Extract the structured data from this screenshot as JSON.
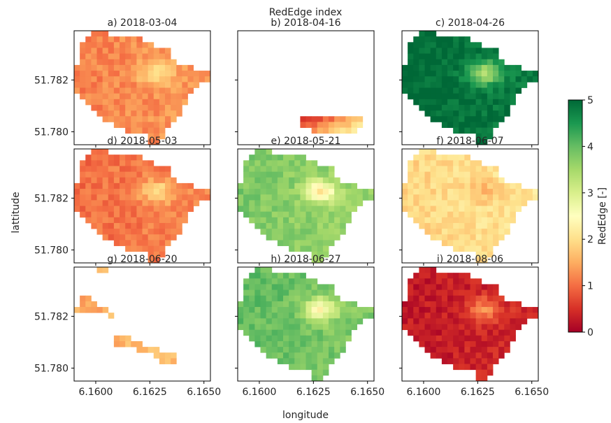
{
  "chart_data": {
    "type": "heatmap",
    "title": "RedEdge index",
    "xlabel": "longitude",
    "ylabel": "lattitude",
    "xlim": [
      6.159,
      6.1653
    ],
    "ylim": [
      51.7795,
      51.7839
    ],
    "x_ticks": [
      6.16,
      6.1625,
      6.165
    ],
    "x_tick_labels": [
      "6.1600",
      "6.1625",
      "6.1650"
    ],
    "y_ticks": [
      51.78,
      51.782
    ],
    "y_tick_labels": [
      "51.780",
      "51.782"
    ],
    "colormap": "RdYlGn",
    "colorbar": {
      "label": "RedEdge [-]",
      "min": 0,
      "max": 5,
      "ticks": [
        0,
        1,
        2,
        3,
        4,
        5
      ],
      "tick_labels": [
        "0",
        "1",
        "2",
        "3",
        "4",
        "5"
      ],
      "stops": [
        "#a50026",
        "#d73027",
        "#f46d43",
        "#fdae61",
        "#fee08b",
        "#ffffbf",
        "#d9ef8b",
        "#a6d96a",
        "#66bd63",
        "#1a9850",
        "#006837"
      ]
    },
    "panels": [
      {
        "title": "a) 2018-03-04",
        "mean_value": 1.25,
        "coverage": "full"
      },
      {
        "title": "b) 2018-04-16",
        "mean_value": 0.45,
        "coverage": "strip"
      },
      {
        "title": "c) 2018-04-26",
        "mean_value": 4.9,
        "coverage": "full"
      },
      {
        "title": "d) 2018-05-03",
        "mean_value": 1.1,
        "coverage": "full"
      },
      {
        "title": "e) 2018-05-21",
        "mean_value": 3.7,
        "coverage": "full"
      },
      {
        "title": "f) 2018-06-07",
        "mean_value": 2.0,
        "coverage": "full"
      },
      {
        "title": "g) 2018-06-20",
        "mean_value": 1.6,
        "coverage": "sparse"
      },
      {
        "title": "h) 2018-06-27",
        "mean_value": 3.9,
        "coverage": "full"
      },
      {
        "title": "i) 2018-08-06",
        "mean_value": 0.35,
        "coverage": "full"
      }
    ]
  }
}
